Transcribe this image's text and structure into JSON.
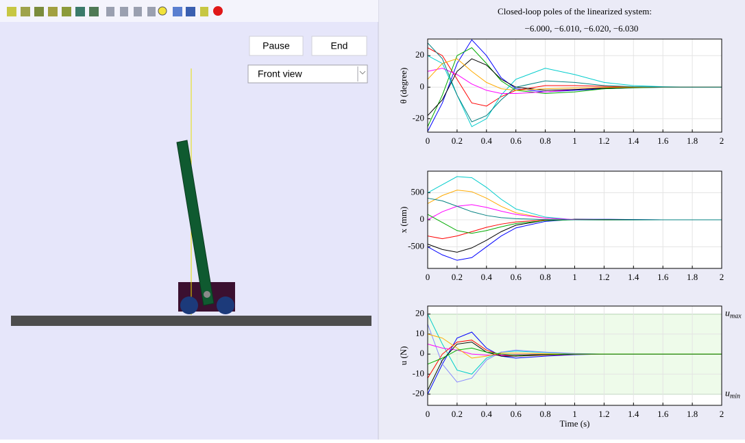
{
  "controls": {
    "pause": "Pause",
    "end": "End",
    "view": "Front view"
  },
  "chart_data": [
    {
      "type": "line",
      "title": "Closed-loop poles of the linearized system:",
      "subtitle": "−6.000, −6.010, −6.020, −6.030",
      "ylabel": "θ (degree)",
      "x": [
        0,
        0.1,
        0.2,
        0.3,
        0.4,
        0.5,
        0.6,
        0.8,
        1,
        1.2,
        1.4,
        1.6,
        1.8,
        2
      ],
      "xlim": [
        0,
        2
      ],
      "xticks": [
        0,
        0.2,
        0.4,
        0.6,
        0.8,
        1,
        1.2,
        1.4,
        1.6,
        1.8,
        2
      ],
      "ylim": [
        -28.5,
        30.5
      ],
      "yticks": [
        -20,
        0,
        20
      ],
      "grid": true,
      "series": [
        {
          "color": "#0000ff",
          "values": [
            -28,
            -10,
            15,
            30,
            20,
            6,
            -1,
            -3,
            -2,
            -1,
            -0.3,
            -0.1,
            0,
            0
          ]
        },
        {
          "color": "#ff0000",
          "values": [
            25,
            20,
            5,
            -10,
            -12,
            -6,
            -2,
            1,
            1,
            0.5,
            0.2,
            0,
            0,
            0
          ]
        },
        {
          "color": "#00aa00",
          "values": [
            -25,
            -5,
            20,
            25,
            15,
            4,
            -2,
            -4,
            -3,
            -1,
            -0.4,
            -0.1,
            0,
            0
          ]
        },
        {
          "color": "#00cccc",
          "values": [
            20,
            15,
            -5,
            -25,
            -20,
            -5,
            5,
            12,
            8,
            3,
            1,
            0.3,
            0,
            0
          ]
        },
        {
          "color": "#ff00ff",
          "values": [
            10,
            12,
            8,
            2,
            -2,
            -4,
            -4,
            -3,
            -1.5,
            -0.5,
            -0.1,
            0,
            0,
            0
          ]
        },
        {
          "color": "#000000",
          "values": [
            -18,
            -8,
            10,
            18,
            14,
            5,
            0,
            -2,
            -1.5,
            -0.6,
            -0.2,
            0,
            0,
            0
          ]
        },
        {
          "color": "#ffaa00",
          "values": [
            5,
            15,
            18,
            10,
            3,
            -1,
            -2,
            -1,
            -0.5,
            -0.2,
            0,
            0,
            0,
            0
          ]
        },
        {
          "color": "#008080",
          "values": [
            28,
            18,
            -5,
            -22,
            -18,
            -8,
            0,
            4,
            3,
            1,
            0.3,
            0.1,
            0,
            0
          ]
        }
      ]
    },
    {
      "type": "line",
      "ylabel": "x (mm)",
      "x": [
        0,
        0.1,
        0.2,
        0.3,
        0.4,
        0.5,
        0.6,
        0.8,
        1,
        1.2,
        1.4,
        1.6,
        1.8,
        2
      ],
      "xlim": [
        0,
        2
      ],
      "xticks": [
        0,
        0.2,
        0.4,
        0.6,
        0.8,
        1,
        1.2,
        1.4,
        1.6,
        1.8,
        2
      ],
      "ylim": [
        -900,
        900
      ],
      "yticks": [
        -500,
        0,
        500
      ],
      "grid": true,
      "series": [
        {
          "color": "#0000ff",
          "values": [
            -500,
            -650,
            -750,
            -700,
            -500,
            -300,
            -150,
            -30,
            10,
            10,
            5,
            0,
            0,
            0
          ]
        },
        {
          "color": "#00cccc",
          "values": [
            500,
            650,
            800,
            780,
            600,
            380,
            200,
            50,
            0,
            -5,
            -3,
            0,
            0,
            0
          ]
        },
        {
          "color": "#ffaa00",
          "values": [
            300,
            450,
            550,
            520,
            400,
            250,
            130,
            30,
            0,
            -3,
            -2,
            0,
            0,
            0
          ]
        },
        {
          "color": "#000000",
          "values": [
            -450,
            -550,
            -600,
            -520,
            -380,
            -220,
            -100,
            -10,
            10,
            5,
            2,
            0,
            0,
            0
          ]
        },
        {
          "color": "#ff00ff",
          "values": [
            0,
            150,
            250,
            280,
            230,
            160,
            100,
            30,
            5,
            0,
            0,
            0,
            0,
            0
          ]
        },
        {
          "color": "#ff0000",
          "values": [
            -300,
            -350,
            -300,
            -220,
            -140,
            -80,
            -40,
            -5,
            2,
            1,
            0,
            0,
            0,
            0
          ]
        },
        {
          "color": "#00aa00",
          "values": [
            100,
            -50,
            -200,
            -250,
            -200,
            -130,
            -70,
            -15,
            0,
            2,
            1,
            0,
            0,
            0
          ]
        },
        {
          "color": "#008080",
          "values": [
            400,
            350,
            250,
            150,
            80,
            40,
            20,
            5,
            0,
            0,
            0,
            0,
            0,
            0
          ]
        }
      ]
    },
    {
      "type": "line",
      "ylabel": "u (N)",
      "xlabel": "Time (s)",
      "x": [
        0,
        0.1,
        0.2,
        0.3,
        0.4,
        0.5,
        0.6,
        0.8,
        1,
        1.2,
        1.4,
        1.6,
        1.8,
        2
      ],
      "xlim": [
        0,
        2
      ],
      "xticks": [
        0,
        0.2,
        0.4,
        0.6,
        0.8,
        1,
        1.2,
        1.4,
        1.6,
        1.8,
        2
      ],
      "ylim": [
        -25.6,
        24
      ],
      "yticks": [
        -20,
        -10,
        0,
        10,
        20
      ],
      "grid": true,
      "limits": [
        {
          "value": 20,
          "label": "u",
          "subscript": "max"
        },
        {
          "value": -20,
          "label": "u",
          "subscript": "min"
        }
      ],
      "series": [
        {
          "color": "#0000ff",
          "values": [
            -20,
            -5,
            8,
            11,
            3,
            -1,
            -2,
            -1,
            -0.3,
            0,
            0,
            0,
            0,
            0
          ]
        },
        {
          "color": "#00cccc",
          "values": [
            20,
            5,
            -8,
            -10,
            -2,
            1,
            1.5,
            0.8,
            0.2,
            0,
            0,
            0,
            0,
            0
          ]
        },
        {
          "color": "#ff0000",
          "values": [
            -12,
            0,
            6,
            7,
            2,
            -0.5,
            -1,
            -0.5,
            -0.1,
            0,
            0,
            0,
            0,
            0
          ]
        },
        {
          "color": "#8888ff",
          "values": [
            15,
            -5,
            -14,
            -12,
            -3,
            1,
            2,
            1,
            0.3,
            0,
            0,
            0,
            0,
            0
          ]
        },
        {
          "color": "#ff00ff",
          "values": [
            5,
            3,
            2,
            0,
            -0.5,
            -0.5,
            -0.3,
            0,
            0,
            0,
            0,
            0,
            0,
            0
          ]
        },
        {
          "color": "#000000",
          "values": [
            -18,
            -3,
            5,
            6,
            1,
            -1,
            -1,
            -0.3,
            0,
            0,
            0,
            0,
            0,
            0
          ]
        },
        {
          "color": "#ffaa00",
          "values": [
            10,
            8,
            3,
            -2,
            -1,
            0.5,
            0.5,
            0.2,
            0,
            0,
            0,
            0,
            0,
            0
          ]
        },
        {
          "color": "#00aa00",
          "values": [
            -5,
            -2,
            2,
            3,
            1,
            0,
            -0.5,
            -0.2,
            0,
            0,
            0,
            0,
            0,
            0
          ]
        }
      ]
    }
  ]
}
